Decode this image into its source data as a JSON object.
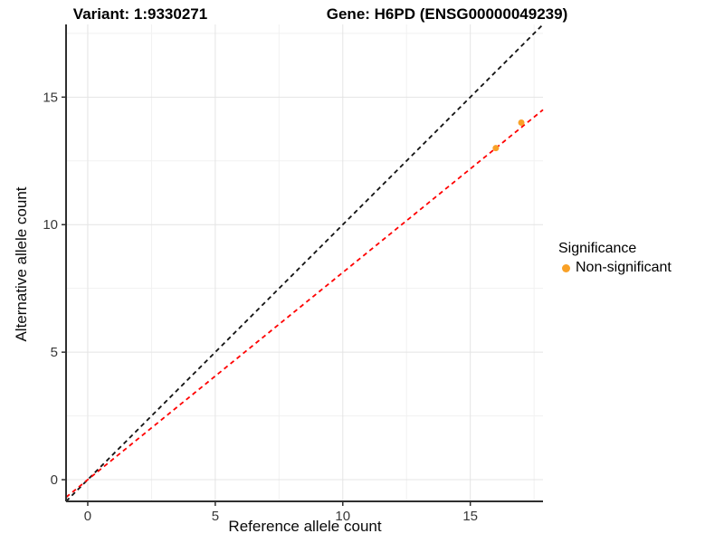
{
  "chart_data": {
    "type": "scatter",
    "title_left": "Variant: 1:9330271",
    "title_right": "Gene: H6PD (ENSG00000049239)",
    "xlabel": "Reference allele count",
    "ylabel": "Alternative allele count",
    "xlim": [
      -0.85,
      17.85
    ],
    "ylim": [
      -0.85,
      17.85
    ],
    "x_ticks": [
      0,
      5,
      10,
      15
    ],
    "y_ticks": [
      0,
      5,
      10,
      15
    ],
    "minor_ticks": [
      2.5,
      7.5,
      12.5,
      17.5
    ],
    "grid": true,
    "series": [
      {
        "name": "Non-significant",
        "color": "#F9A127",
        "points": [
          {
            "x": 16,
            "y": 13
          },
          {
            "x": 17,
            "y": 14
          }
        ]
      }
    ],
    "lines": [
      {
        "name": "identity-line",
        "slope": 1,
        "intercept": 0,
        "color": "#111111",
        "style": "dashed"
      },
      {
        "name": "fit-line",
        "slope": 0.8125,
        "intercept": 0,
        "color": "#FF0000",
        "style": "dashed"
      }
    ],
    "legend": {
      "title": "Significance",
      "position": "right",
      "items": [
        {
          "label": "Non-significant",
          "color": "#F9A127"
        }
      ]
    },
    "colors": {
      "major_grid": "#E4E4E4",
      "minor_grid": "#F1F1F1",
      "axis_line": "#2F2F2F",
      "tick_label": "#383838"
    }
  }
}
